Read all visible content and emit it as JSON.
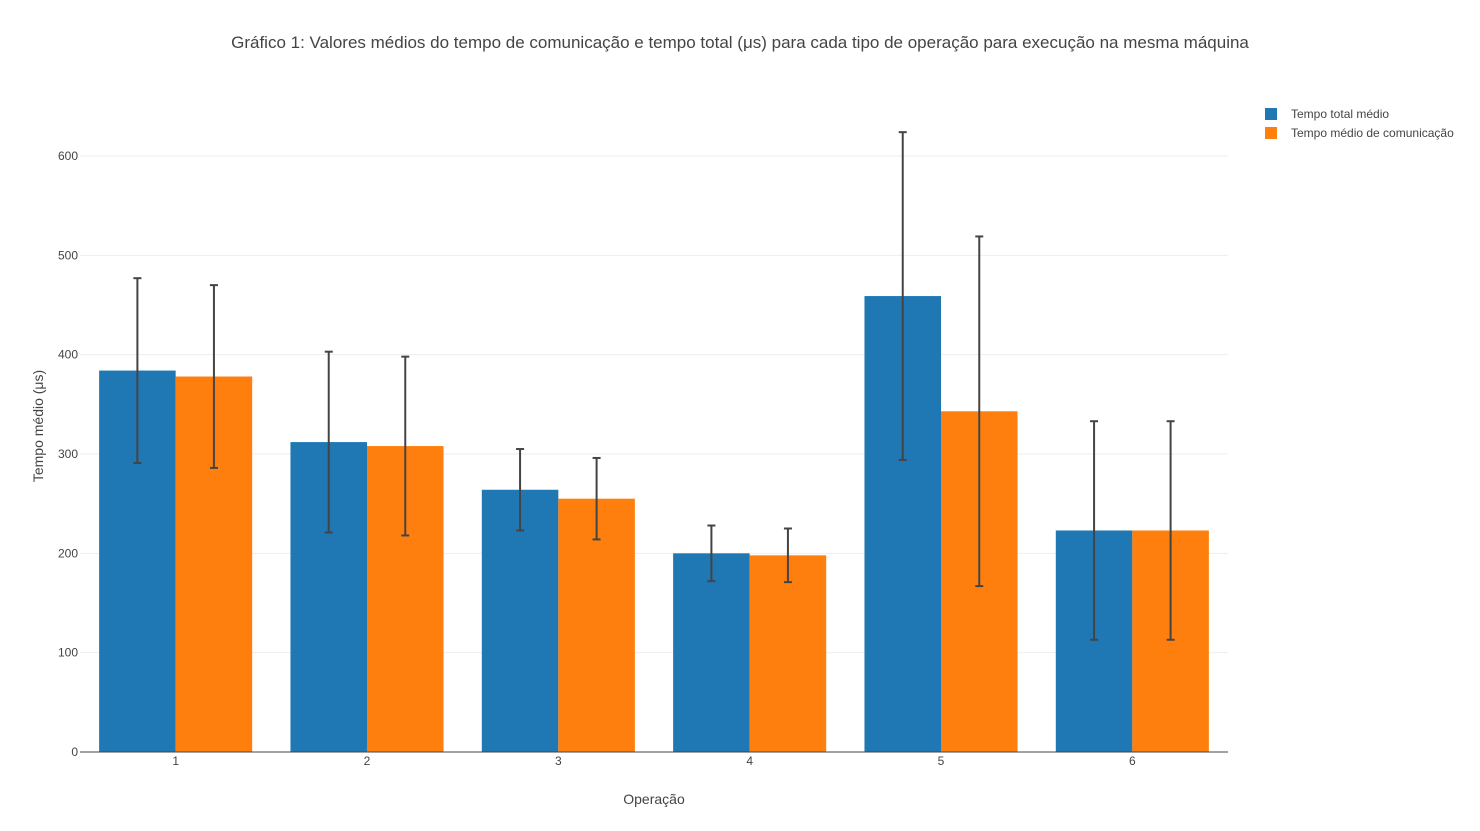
{
  "chart_data": {
    "type": "bar",
    "title": "Gráfico 1: Valores médios do tempo de comunicação e tempo total (μs) para cada tipo de operação para execução na mesma máquina",
    "xlabel": "Operação",
    "ylabel": "Tempo médio (μs)",
    "categories": [
      "1",
      "2",
      "3",
      "4",
      "5",
      "6"
    ],
    "ylim": [
      0,
      650
    ],
    "yticks": [
      0,
      100,
      200,
      300,
      400,
      500,
      600
    ],
    "ytick_labels": [
      "0",
      "100",
      "200",
      "300",
      "400",
      "500",
      "600"
    ],
    "grid": true,
    "legend_position": "top-right",
    "series": [
      {
        "name": "Tempo total médio",
        "color": "#1f77b4",
        "values": [
          384,
          312,
          264,
          200,
          459,
          223
        ],
        "error": [
          93,
          91,
          41,
          28,
          165,
          110
        ]
      },
      {
        "name": "Tempo médio de comunicação",
        "color": "#ff7f0e",
        "values": [
          378,
          308,
          255,
          198,
          343,
          223
        ],
        "error": [
          92,
          90,
          41,
          27,
          176,
          110
        ]
      }
    ]
  }
}
